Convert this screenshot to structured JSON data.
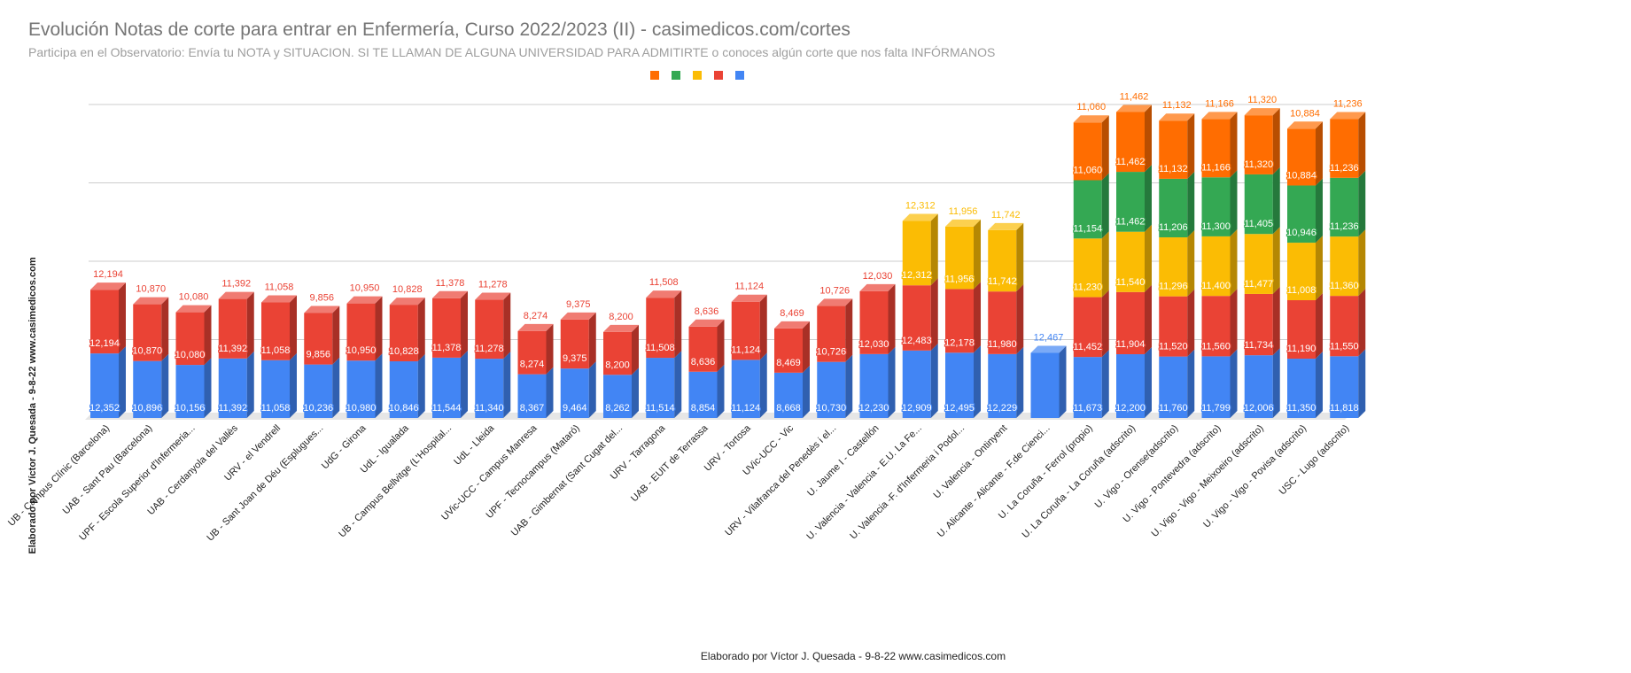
{
  "chart_data": {
    "type": "bar",
    "stacked": true,
    "style": "3d",
    "title": "Evolución Notas de corte para entrar en Enfermería, Curso 2022/2023 (II) - casimedicos.com/cortes",
    "subtitle": "Participa en el Observatorio: Envía tu NOTA y SITUACION. SI TE LLAMAN DE ALGUNA UNIVERSIDAD PARA ADMITIRTE o conoces algún corte que nos falta INFÓRMANOS",
    "xlabel": "Elaborado por Víctor J. Quesada - 9-8-22  www.casimedicos.com",
    "ylabel": "Elaborado por Víctor J. Quesada - 9-8-22  www.casimedicos.com",
    "legend_position": "top",
    "grid": true,
    "ylim": [
      0,
      60
    ],
    "categories": [
      "UB - Campus Clínic (Barcelona)",
      "UAB - Sant Pau (Barcelona)",
      "UPF - Escola Superior d'Infermeria...",
      "UAB - Cerdanyola del Vallès",
      "URV - el Vendrell",
      "UB - Sant Joan de Déu (Esplugues...",
      "UdG - Girona",
      "UdL - Igualada",
      "UB - Campus Bellvitge (L'Hospital...",
      "UdL - Lleida",
      "UVic-UCC - Campus Manresa",
      "UPF - Tecnocampus (Mataró)",
      "UAB - Gimbernat (Sant Cugat del...",
      "URV - Tarragona",
      "UAB - EUIT de Terrassa",
      "URV - Tortosa",
      "UVic-UCC - Vic",
      "URV - Vilafranca del Penedès i el...",
      "U. Jaume I - Castellón",
      "U. Valencia - Valencia - E.U. La Fe...",
      "U. Valencia -F. d'Infermeria i Podol...",
      "U. Valencia - Ontinyent",
      "U. Alicante - Alicante - F.de Cienci...",
      "U. La Coruña - Ferrol  (propio)",
      "U. La Coruña - La Coruña (adscrito)",
      "U. Vigo - Orense(adscrito)",
      "U. Vigo - Pontevedra (adscrito)",
      "U. Vigo - Vigo - Meixoeiro (adscrito)",
      "U. Vigo - Vigo - Povisa (adscrito)",
      "USC - Lugo  (adscrito)"
    ],
    "series": [
      {
        "color": "#4285f4",
        "label_color": "#4285f4",
        "values": [
          12.352,
          10.896,
          10.156,
          11.392,
          11.058,
          10.236,
          10.98,
          10.846,
          11.544,
          11.34,
          8.367,
          9.464,
          8.262,
          11.514,
          8.854,
          11.124,
          8.668,
          10.73,
          12.23,
          12.909,
          12.495,
          12.229,
          12.467,
          11.673,
          12.2,
          11.76,
          11.799,
          12.006,
          11.35,
          11.818
        ],
        "labels": [
          "12,352",
          "10,896",
          "10,156",
          "11,392",
          "11,058",
          "10,236",
          "10,980",
          "10,846",
          "11,544",
          "11,340",
          "8,367",
          "9,464",
          "8,262",
          "11,514",
          "8,854",
          "11,124",
          "8,668",
          "10,730",
          "12,230",
          "12,909",
          "12,495",
          "12,229",
          "12,467",
          "11,673",
          "12,200",
          "11,760",
          "11,799",
          "12,006",
          "11,350",
          "11,818"
        ]
      },
      {
        "color": "#ea4335",
        "label_color": "#ea4335",
        "values": [
          12.194,
          10.87,
          10.08,
          11.392,
          11.058,
          9.856,
          10.95,
          10.828,
          11.378,
          11.278,
          8.274,
          9.375,
          8.2,
          11.508,
          8.636,
          11.124,
          8.469,
          10.726,
          12.03,
          12.483,
          12.178,
          11.98,
          null,
          11.452,
          11.904,
          11.52,
          11.56,
          11.734,
          11.19,
          11.55
        ],
        "labels": [
          "12,194",
          "10,870",
          "10,080",
          "11,392",
          "11,058",
          "9,856",
          "10,950",
          "10,828",
          "11,378",
          "11,278",
          "8,274",
          "9,375",
          "8,200",
          "11,508",
          "8,636",
          "11,124",
          "8,469",
          "10,726",
          "12,030",
          "12,483",
          "12,178",
          "11,980",
          null,
          "11,452",
          "11,904",
          "11,520",
          "11,560",
          "11,734",
          "11,190",
          "11,550"
        ]
      },
      {
        "color": "#fbbc04",
        "label_color": "#fbbc04",
        "values": [
          null,
          null,
          null,
          null,
          null,
          null,
          null,
          null,
          null,
          null,
          null,
          null,
          null,
          null,
          null,
          null,
          null,
          null,
          null,
          12.312,
          11.956,
          11.742,
          null,
          11.23,
          11.54,
          11.296,
          11.4,
          11.477,
          11.008,
          11.36
        ],
        "labels": [
          null,
          null,
          null,
          null,
          null,
          null,
          null,
          null,
          null,
          null,
          null,
          null,
          null,
          null,
          null,
          null,
          null,
          null,
          null,
          "12,312",
          "11,956",
          "11,742",
          null,
          "11,230",
          "11,540",
          "11,296",
          "11,400",
          "11,477",
          "11,008",
          "11,360"
        ]
      },
      {
        "color": "#34a853",
        "label_color": "#34a853",
        "values": [
          null,
          null,
          null,
          null,
          null,
          null,
          null,
          null,
          null,
          null,
          null,
          null,
          null,
          null,
          null,
          null,
          null,
          null,
          null,
          null,
          null,
          null,
          null,
          11.154,
          11.462,
          11.206,
          11.3,
          11.405,
          10.946,
          11.236
        ],
        "labels": [
          null,
          null,
          null,
          null,
          null,
          null,
          null,
          null,
          null,
          null,
          null,
          null,
          null,
          null,
          null,
          null,
          null,
          null,
          null,
          null,
          null,
          null,
          null,
          "11,154",
          "11,462",
          "11,206",
          "11,300",
          "11,405",
          "10,946",
          "11,236"
        ]
      },
      {
        "color": "#ff6d01",
        "label_color": "#ff6d01",
        "values": [
          null,
          null,
          null,
          null,
          null,
          null,
          null,
          null,
          null,
          null,
          null,
          null,
          null,
          null,
          null,
          null,
          null,
          null,
          null,
          null,
          null,
          null,
          null,
          11.06,
          11.462,
          11.132,
          11.166,
          11.32,
          10.884,
          11.236
        ],
        "labels": [
          null,
          null,
          null,
          null,
          null,
          null,
          null,
          null,
          null,
          null,
          null,
          null,
          null,
          null,
          null,
          null,
          null,
          null,
          null,
          null,
          null,
          null,
          null,
          "11,060",
          "11,462",
          "11,132",
          "11,166",
          "11,320",
          "10,884",
          "11,236"
        ]
      }
    ],
    "legend": [
      {
        "color": "#ff6d01"
      },
      {
        "color": "#34a853"
      },
      {
        "color": "#fbbc04"
      },
      {
        "color": "#ea4335"
      },
      {
        "color": "#4285f4"
      }
    ]
  }
}
